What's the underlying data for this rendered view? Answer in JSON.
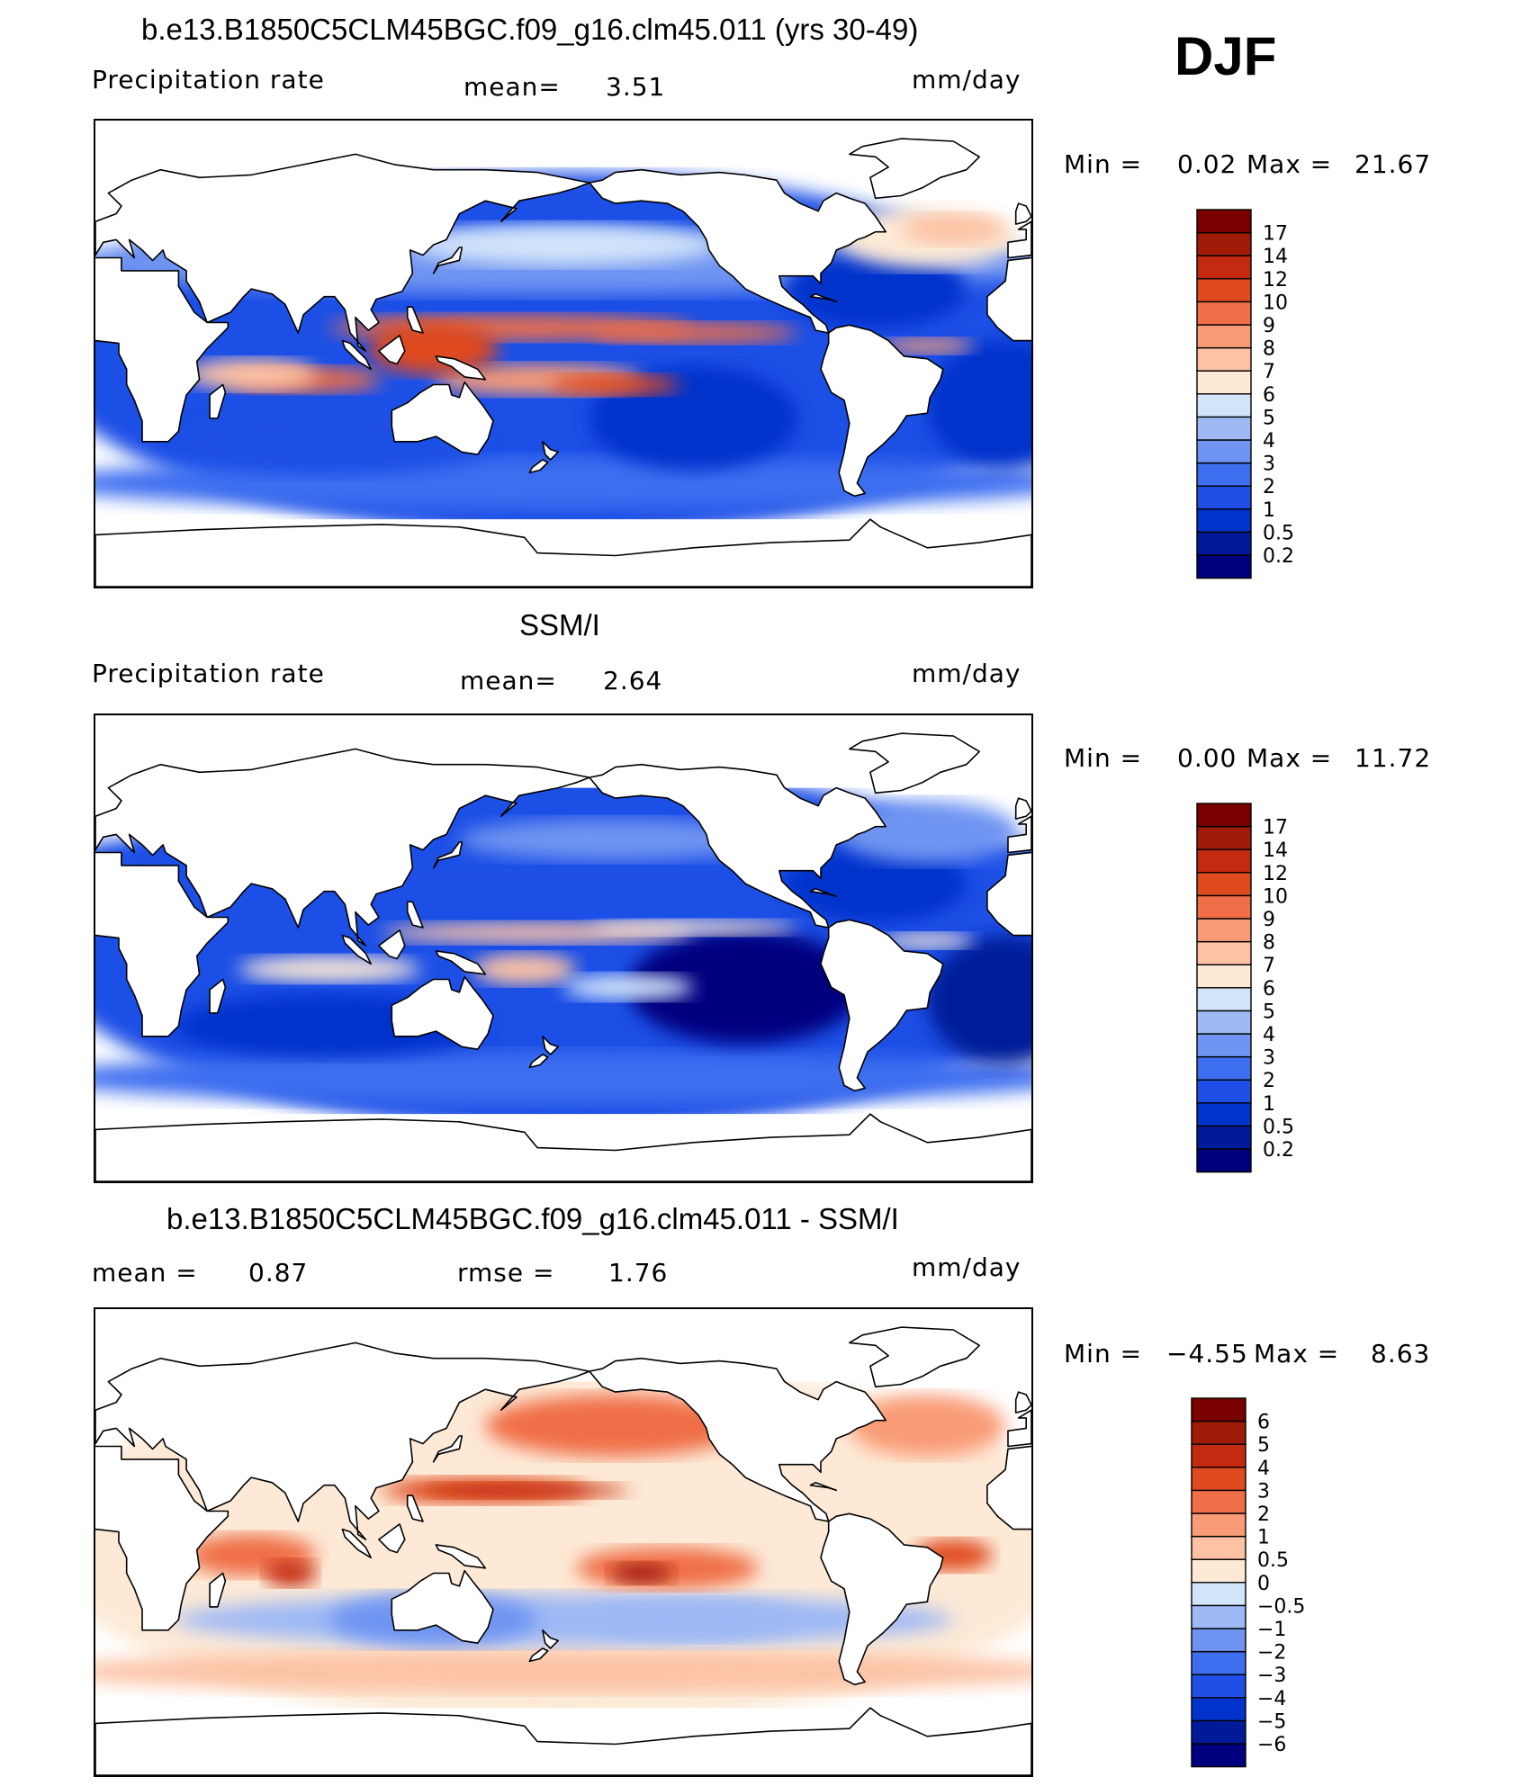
{
  "season": "DJF",
  "chart_data": [
    {
      "type": "heatmap",
      "title": "b.e13.B1850C5CLM45BGC.f09_g16.clm45.011 (yrs 30-49)",
      "variable": "Precipitation rate",
      "units": "mm/day",
      "stats": [
        {
          "label": "mean=",
          "value": "3.51"
        }
      ],
      "min_label": "Min =",
      "min_value": "0.02",
      "max_label": "Max =",
      "max_value": "21.67",
      "levels": [
        "0.2",
        "0.5",
        "1",
        "2",
        "3",
        "4",
        "5",
        "6",
        "7",
        "8",
        "9",
        "10",
        "12",
        "14",
        "17"
      ],
      "colors": [
        "#00007f",
        "#001a99",
        "#0033cc",
        "#1f4fe6",
        "#3d6ef0",
        "#6f94f2",
        "#9fb9f5",
        "#d2e4fa",
        "#fde9d6",
        "#fcc2a4",
        "#f99b76",
        "#f06e47",
        "#e04a1f",
        "#c42a10",
        "#a01a08",
        "#7a0000"
      ]
    },
    {
      "type": "heatmap",
      "title": "SSM/I",
      "variable": "Precipitation rate",
      "units": "mm/day",
      "stats": [
        {
          "label": "mean=",
          "value": "2.64"
        }
      ],
      "min_label": "Min =",
      "min_value": "0.00",
      "max_label": "Max =",
      "max_value": "11.72",
      "levels": [
        "0.2",
        "0.5",
        "1",
        "2",
        "3",
        "4",
        "5",
        "6",
        "7",
        "8",
        "9",
        "10",
        "12",
        "14",
        "17"
      ],
      "colors": [
        "#00007f",
        "#001a99",
        "#0033cc",
        "#1f4fe6",
        "#3d6ef0",
        "#6f94f2",
        "#9fb9f5",
        "#d2e4fa",
        "#fde9d6",
        "#fcc2a4",
        "#f99b76",
        "#f06e47",
        "#e04a1f",
        "#c42a10",
        "#a01a08",
        "#7a0000"
      ]
    },
    {
      "type": "heatmap",
      "title": "b.e13.B1850C5CLM45BGC.f09_g16.clm45.011 - SSM/I",
      "variable": "",
      "units": "mm/day",
      "stats": [
        {
          "label": "mean =",
          "value": "0.87"
        },
        {
          "label": "rmse =",
          "value": "1.76"
        }
      ],
      "min_label": "Min =",
      "min_value": "−4.55",
      "max_label": "Max =",
      "max_value": "8.63",
      "levels": [
        "−6",
        "−5",
        "−4",
        "−3",
        "−2",
        "−1",
        "−0.5",
        "0",
        "0.5",
        "1",
        "2",
        "3",
        "4",
        "5",
        "6"
      ],
      "colors": [
        "#00007f",
        "#001a99",
        "#0033cc",
        "#1f4fe6",
        "#3d6ef0",
        "#6f94f2",
        "#9fb9f5",
        "#d2e4fa",
        "#fde9d6",
        "#fcc2a4",
        "#f99b76",
        "#f06e47",
        "#e04a1f",
        "#c42a10",
        "#a01a08",
        "#7a0000"
      ]
    }
  ]
}
